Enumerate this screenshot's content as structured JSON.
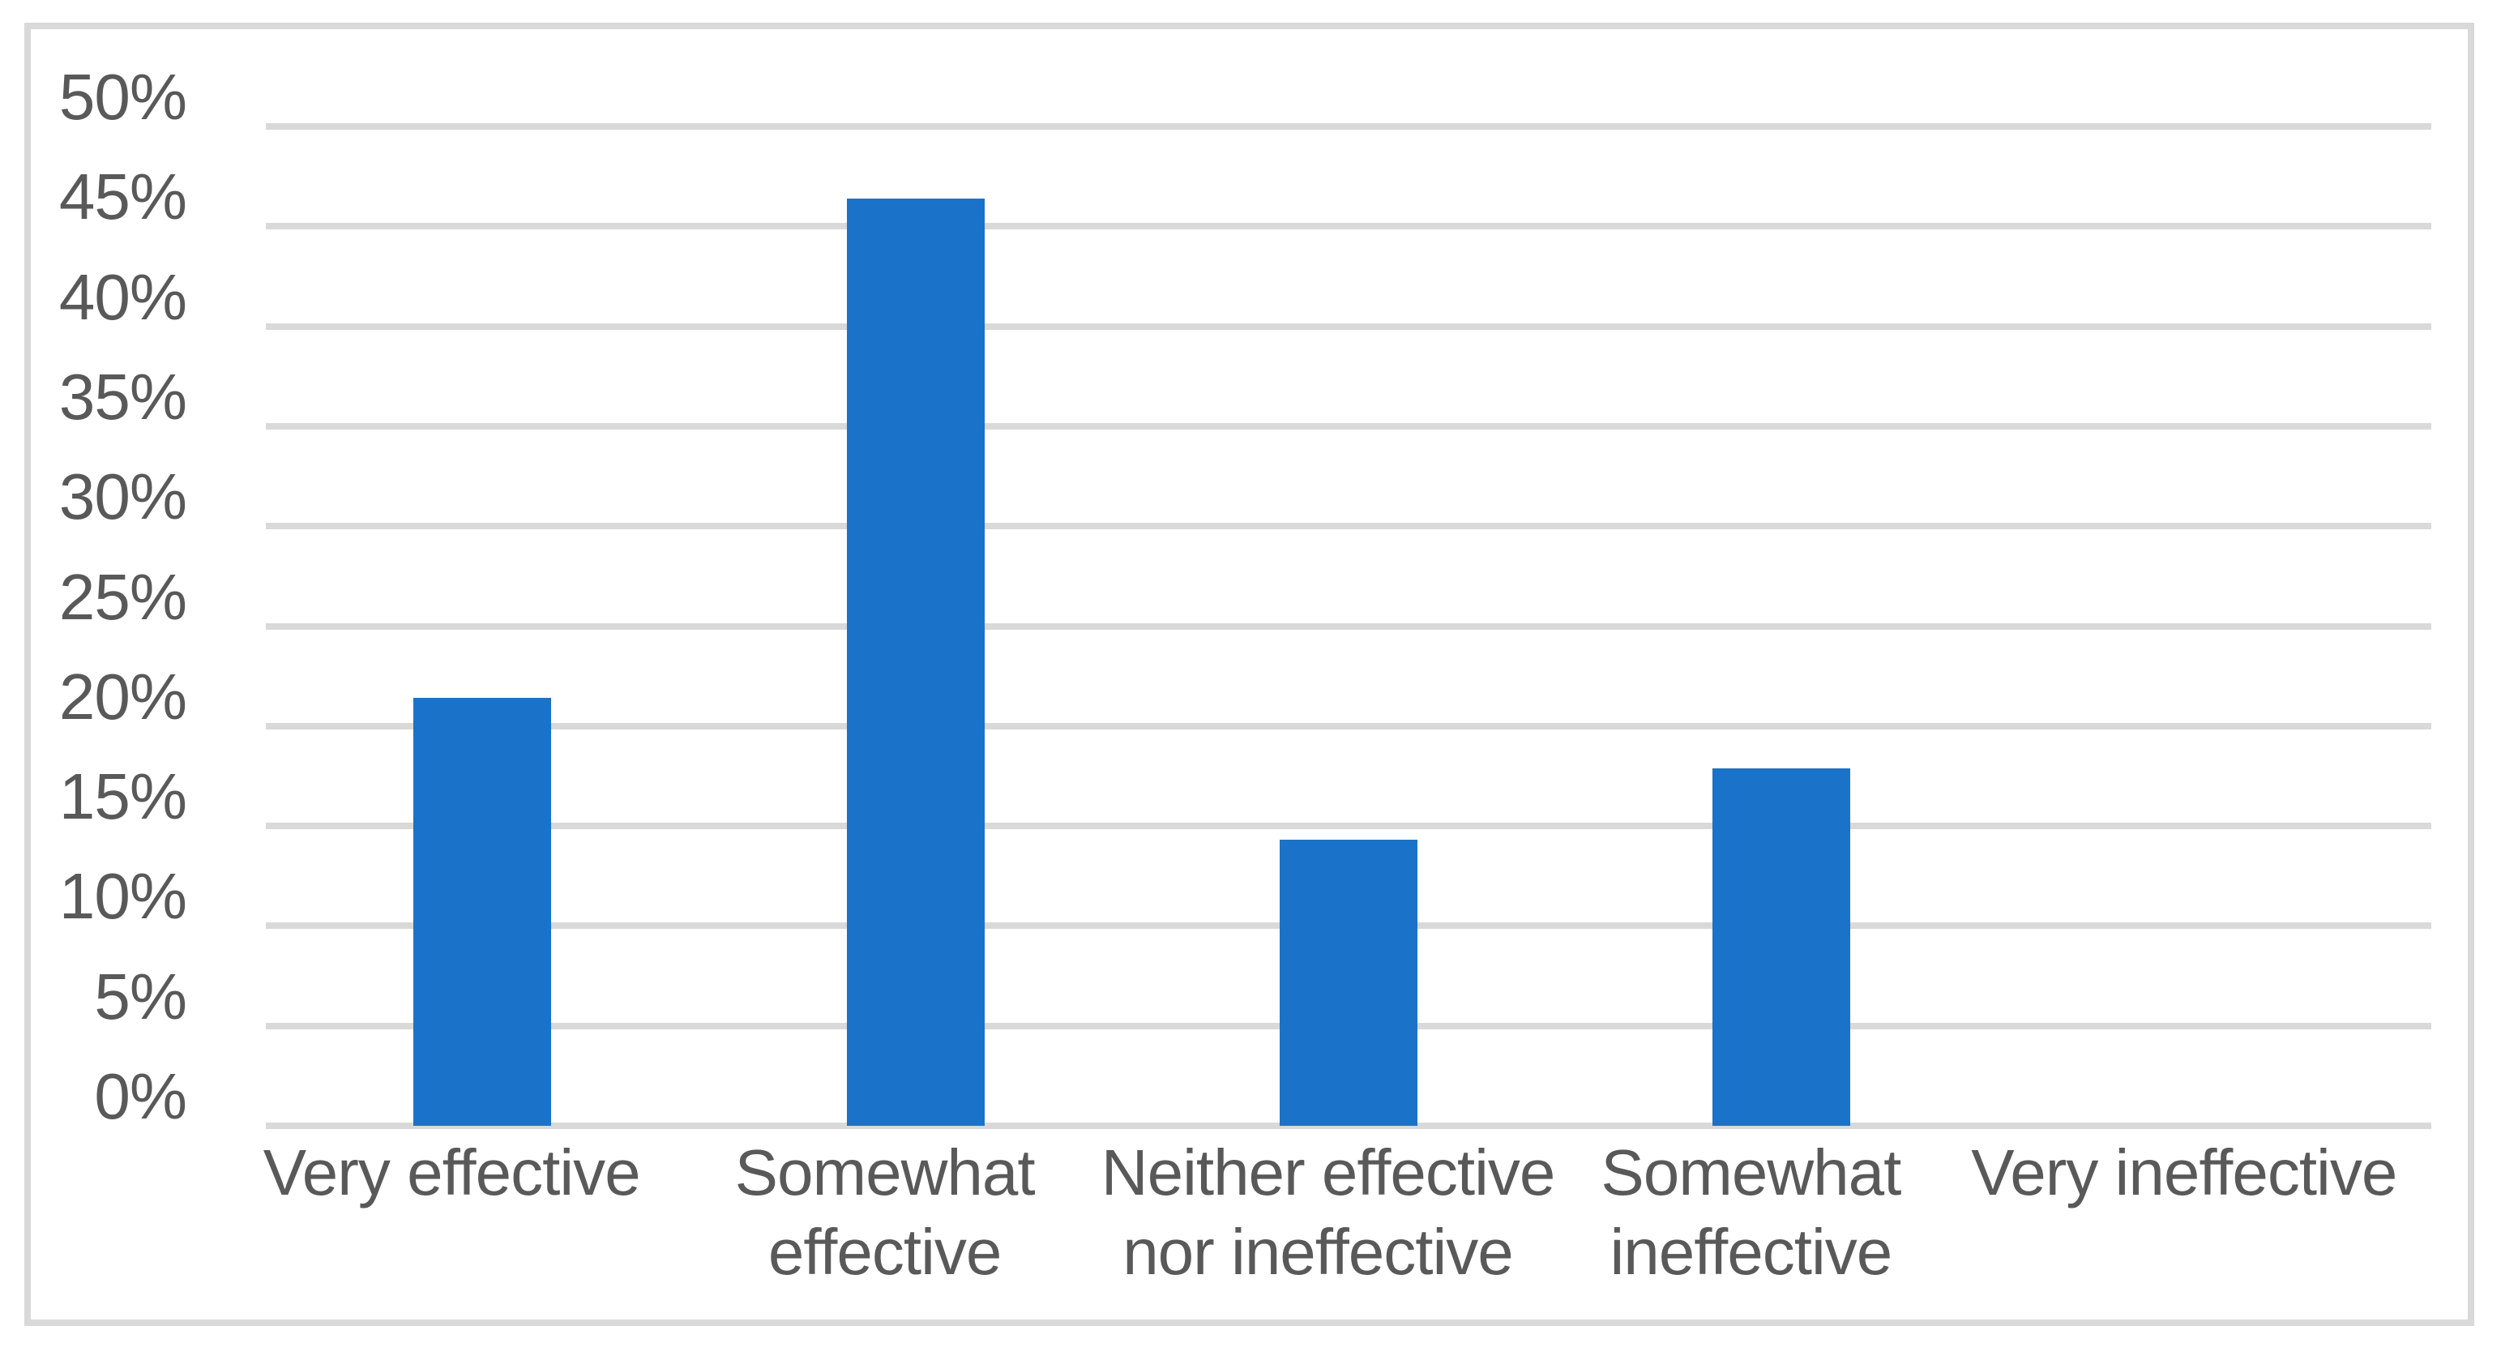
{
  "chart_data": {
    "type": "bar",
    "title": "",
    "xlabel": "",
    "ylabel": "",
    "categories": [
      "Very effective",
      "Somewhat effective",
      "Neither effective nor ineffective",
      "Somewhat ineffective",
      "Very ineffective"
    ],
    "category_lines": [
      [
        "Very effective"
      ],
      [
        "Somewhat",
        "effective"
      ],
      [
        "Neither effective",
        "nor ineffective"
      ],
      [
        "Somewhat",
        "ineffective"
      ],
      [
        "Very ineffective"
      ]
    ],
    "values": [
      21.4,
      46.4,
      14.3,
      17.9,
      0
    ],
    "unit": "%",
    "ylim": [
      0,
      50
    ],
    "y_tick_step": 5,
    "y_tick_labels": [
      "0%",
      "5%",
      "10%",
      "15%",
      "20%",
      "25%",
      "30%",
      "35%",
      "40%",
      "45%",
      "50%"
    ],
    "grid": true,
    "legend": "none",
    "colors": {
      "bar": "#1A73C8",
      "gridline": "#D9D9D9",
      "axis_line": "#D9D9D9",
      "frame_border": "#D9D9D9",
      "text": "#595959",
      "background": "#FFFFFF"
    }
  }
}
